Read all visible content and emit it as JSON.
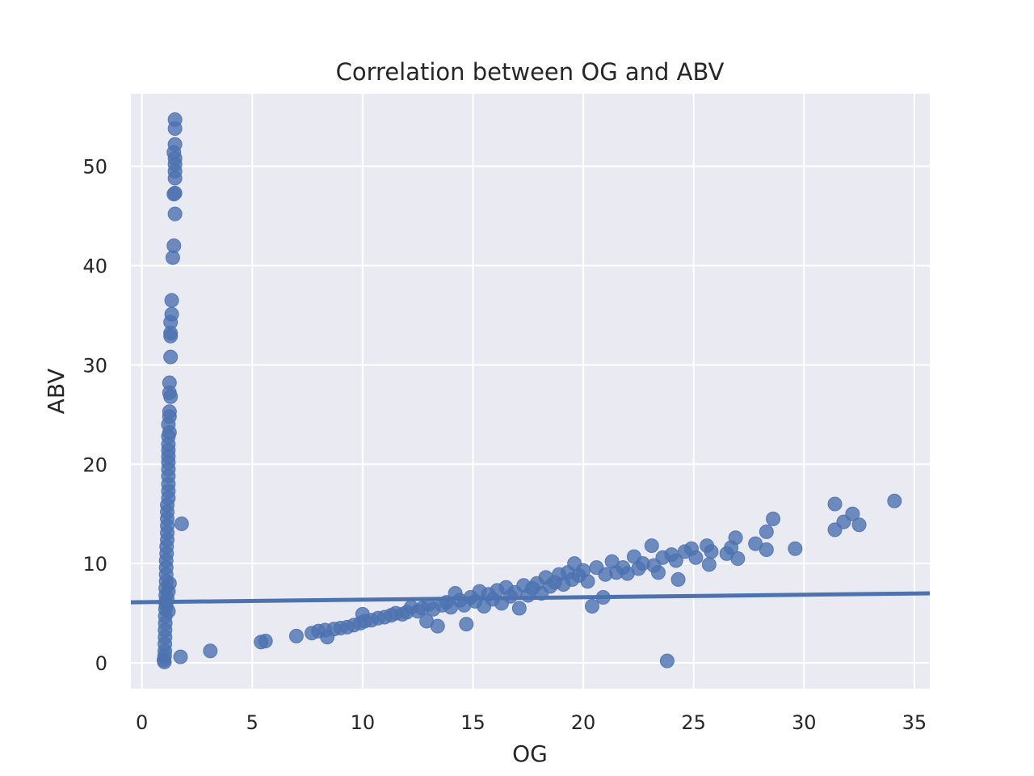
{
  "chart_data": {
    "type": "scatter",
    "title": "Correlation between OG and ABV",
    "xlabel": "OG",
    "ylabel": "ABV",
    "xlim": [
      -0.5,
      35.7
    ],
    "ylim": [
      -2.6,
      57.3
    ],
    "xticks": [
      0,
      5,
      10,
      15,
      20,
      25,
      30,
      35
    ],
    "yticks": [
      0,
      10,
      20,
      30,
      40,
      50
    ],
    "grid": true,
    "series": [
      {
        "color": "#4c72b0",
        "points": [
          [
            1.5,
            54.7
          ],
          [
            1.5,
            53.8
          ],
          [
            1.5,
            52.2
          ],
          [
            1.45,
            51.4
          ],
          [
            1.5,
            50.8
          ],
          [
            1.5,
            50.2
          ],
          [
            1.5,
            49.5
          ],
          [
            1.5,
            48.8
          ],
          [
            1.5,
            47.3
          ],
          [
            1.45,
            47.2
          ],
          [
            1.5,
            45.2
          ],
          [
            1.45,
            42.0
          ],
          [
            1.4,
            40.8
          ],
          [
            1.35,
            36.5
          ],
          [
            1.35,
            35.1
          ],
          [
            1.3,
            34.3
          ],
          [
            1.3,
            33.2
          ],
          [
            1.3,
            32.9
          ],
          [
            1.3,
            30.8
          ],
          [
            1.25,
            28.2
          ],
          [
            1.25,
            27.2
          ],
          [
            1.3,
            26.8
          ],
          [
            1.25,
            25.3
          ],
          [
            1.25,
            24.8
          ],
          [
            1.2,
            24.0
          ],
          [
            1.25,
            23.2
          ],
          [
            1.2,
            22.8
          ],
          [
            1.2,
            22.0
          ],
          [
            1.2,
            21.4
          ],
          [
            1.2,
            20.8
          ],
          [
            1.2,
            20.2
          ],
          [
            1.2,
            19.5
          ],
          [
            1.2,
            18.8
          ],
          [
            1.2,
            18.0
          ],
          [
            1.2,
            17.3
          ],
          [
            1.2,
            16.6
          ],
          [
            1.15,
            15.9
          ],
          [
            1.15,
            15.2
          ],
          [
            1.15,
            14.5
          ],
          [
            1.15,
            13.8
          ],
          [
            1.15,
            13.1
          ],
          [
            1.15,
            12.4
          ],
          [
            1.12,
            11.7
          ],
          [
            1.12,
            11.0
          ],
          [
            1.1,
            10.3
          ],
          [
            1.1,
            9.6
          ],
          [
            1.1,
            8.9
          ],
          [
            1.1,
            8.2
          ],
          [
            1.08,
            7.5
          ],
          [
            1.08,
            6.8
          ],
          [
            1.07,
            6.1
          ],
          [
            1.07,
            5.4
          ],
          [
            1.06,
            4.7
          ],
          [
            1.06,
            4.0
          ],
          [
            1.05,
            3.3
          ],
          [
            1.05,
            2.6
          ],
          [
            1.04,
            1.9
          ],
          [
            1.04,
            1.2
          ],
          [
            1.03,
            0.7
          ],
          [
            1.0,
            0.3
          ],
          [
            1.02,
            0.1
          ],
          [
            1.2,
            5.2
          ],
          [
            1.1,
            5.8
          ],
          [
            1.15,
            6.5
          ],
          [
            1.2,
            7.2
          ],
          [
            1.25,
            8.0
          ],
          [
            1.8,
            14.0
          ],
          [
            1.75,
            0.6
          ],
          [
            3.1,
            1.2
          ],
          [
            5.4,
            2.1
          ],
          [
            5.6,
            2.2
          ],
          [
            7.0,
            2.7
          ],
          [
            7.7,
            3.0
          ],
          [
            8.0,
            3.2
          ],
          [
            8.3,
            3.3
          ],
          [
            8.4,
            2.6
          ],
          [
            8.7,
            3.4
          ],
          [
            9.0,
            3.5
          ],
          [
            9.3,
            3.6
          ],
          [
            9.6,
            3.8
          ],
          [
            9.9,
            4.0
          ],
          [
            10.1,
            4.2
          ],
          [
            10.0,
            4.9
          ],
          [
            10.4,
            4.3
          ],
          [
            10.7,
            4.5
          ],
          [
            11.0,
            4.6
          ],
          [
            11.3,
            4.8
          ],
          [
            11.5,
            5.0
          ],
          [
            11.8,
            4.9
          ],
          [
            12.0,
            5.1
          ],
          [
            12.2,
            5.6
          ],
          [
            12.5,
            5.2
          ],
          [
            12.7,
            5.5
          ],
          [
            12.9,
            4.2
          ],
          [
            13.0,
            5.9
          ],
          [
            13.2,
            5.4
          ],
          [
            13.4,
            3.7
          ],
          [
            13.6,
            5.8
          ],
          [
            13.8,
            6.1
          ],
          [
            14.0,
            5.6
          ],
          [
            14.2,
            7.0
          ],
          [
            14.4,
            6.3
          ],
          [
            14.6,
            5.8
          ],
          [
            14.7,
            3.9
          ],
          [
            14.9,
            6.6
          ],
          [
            15.1,
            6.2
          ],
          [
            15.3,
            7.2
          ],
          [
            15.5,
            5.7
          ],
          [
            15.7,
            6.9
          ],
          [
            15.9,
            6.4
          ],
          [
            16.1,
            7.3
          ],
          [
            16.3,
            6.0
          ],
          [
            16.5,
            7.6
          ],
          [
            16.7,
            6.7
          ],
          [
            16.9,
            7.1
          ],
          [
            17.1,
            5.5
          ],
          [
            17.3,
            7.8
          ],
          [
            17.5,
            6.8
          ],
          [
            17.7,
            7.5
          ],
          [
            17.9,
            8.0
          ],
          [
            18.1,
            7.0
          ],
          [
            18.3,
            8.6
          ],
          [
            18.5,
            7.7
          ],
          [
            18.7,
            8.1
          ],
          [
            18.9,
            8.9
          ],
          [
            19.1,
            7.9
          ],
          [
            19.3,
            9.1
          ],
          [
            19.5,
            8.4
          ],
          [
            19.6,
            10.0
          ],
          [
            19.8,
            8.8
          ],
          [
            20.0,
            9.3
          ],
          [
            20.2,
            8.2
          ],
          [
            20.4,
            5.7
          ],
          [
            20.6,
            9.6
          ],
          [
            20.9,
            6.6
          ],
          [
            21.0,
            8.9
          ],
          [
            21.3,
            10.2
          ],
          [
            21.5,
            9.1
          ],
          [
            21.8,
            9.6
          ],
          [
            22.0,
            9.0
          ],
          [
            22.3,
            10.7
          ],
          [
            22.5,
            9.5
          ],
          [
            22.7,
            10.0
          ],
          [
            23.1,
            11.8
          ],
          [
            23.2,
            9.8
          ],
          [
            23.4,
            9.1
          ],
          [
            23.6,
            10.6
          ],
          [
            23.8,
            0.2
          ],
          [
            24.0,
            10.9
          ],
          [
            24.2,
            10.3
          ],
          [
            24.3,
            8.4
          ],
          [
            24.6,
            11.2
          ],
          [
            24.9,
            11.5
          ],
          [
            25.1,
            10.6
          ],
          [
            25.6,
            11.8
          ],
          [
            25.7,
            9.9
          ],
          [
            25.8,
            11.2
          ],
          [
            26.5,
            11.0
          ],
          [
            26.7,
            11.6
          ],
          [
            26.9,
            12.6
          ],
          [
            27.0,
            10.5
          ],
          [
            27.8,
            12.0
          ],
          [
            28.3,
            13.2
          ],
          [
            28.3,
            11.4
          ],
          [
            28.6,
            14.5
          ],
          [
            29.6,
            11.5
          ],
          [
            31.4,
            16.0
          ],
          [
            31.4,
            13.4
          ],
          [
            31.8,
            14.2
          ],
          [
            32.2,
            15.0
          ],
          [
            32.5,
            13.9
          ],
          [
            34.1,
            16.3
          ]
        ]
      }
    ],
    "regression": {
      "x": [
        -0.5,
        35.7
      ],
      "y": [
        6.1,
        7.0
      ]
    }
  }
}
